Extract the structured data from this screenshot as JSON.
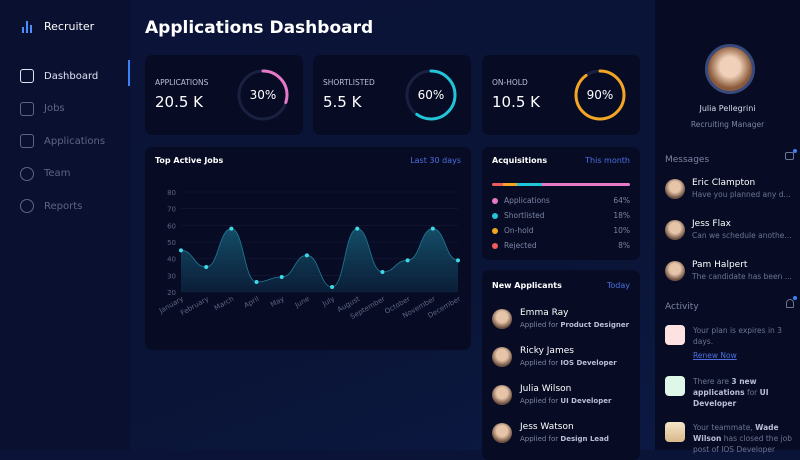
{
  "brand": "Recruiter",
  "nav": [
    {
      "label": "Dashboard",
      "icon": "dashboard-icon"
    },
    {
      "label": "Jobs",
      "icon": "briefcase-icon"
    },
    {
      "label": "Applications",
      "icon": "document-icon"
    },
    {
      "label": "Team",
      "icon": "team-icon"
    },
    {
      "label": "Reports",
      "icon": "pie-chart-icon"
    }
  ],
  "title": "Applications Dashboard",
  "stats": [
    {
      "label": "APPLICATIONS",
      "value": "20.5 K",
      "percent": 30,
      "pct_label": "30%",
      "color": "#e879c9"
    },
    {
      "label": "SHORTLISTED",
      "value": "5.5 K",
      "percent": 60,
      "pct_label": "60%",
      "color": "#22c4d8"
    },
    {
      "label": "ON-HOLD",
      "value": "10.5 K",
      "percent": 90,
      "pct_label": "90%",
      "color": "#f5a524"
    }
  ],
  "chart": {
    "title": "Top Active Jobs",
    "range": "Last 30 days"
  },
  "chart_data": {
    "type": "area",
    "categories": [
      "January",
      "February",
      "March",
      "April",
      "May",
      "June",
      "July",
      "August",
      "September",
      "October",
      "November",
      "December"
    ],
    "values": [
      45,
      35,
      58,
      26,
      29,
      42,
      23,
      58,
      32,
      39,
      58,
      39
    ],
    "yticks": [
      20,
      30,
      40,
      50,
      60,
      70,
      80
    ],
    "ylim": [
      20,
      80
    ],
    "grid": true
  },
  "acq": {
    "title": "Acquisitions",
    "range": "This month",
    "items": [
      {
        "label": "Applications",
        "pct": "64%",
        "value": 64,
        "color": "#e879c9"
      },
      {
        "label": "Shortlisted",
        "pct": "18%",
        "value": 18,
        "color": "#22c4d8"
      },
      {
        "label": "On-hold",
        "pct": "10%",
        "value": 10,
        "color": "#f5a524"
      },
      {
        "label": "Rejected",
        "pct": "8%",
        "value": 8,
        "color": "#ef5b5b"
      }
    ]
  },
  "applicants": {
    "title": "New Applicants",
    "range": "Today",
    "prefix": "Applied for",
    "items": [
      {
        "name": "Emma Ray",
        "role": "Product Designer"
      },
      {
        "name": "Ricky James",
        "role": "IOS Developer"
      },
      {
        "name": "Julia Wilson",
        "role": "UI Developer"
      },
      {
        "name": "Jess Watson",
        "role": "Design Lead"
      }
    ]
  },
  "profile": {
    "name": "Julia Pellegrini",
    "role": "Recruiting Manager"
  },
  "messages": {
    "title": "Messages",
    "items": [
      {
        "name": "Eric Clampton",
        "text": "Have you planned any d..."
      },
      {
        "name": "Jess Flax",
        "text": "Can we schedule anothe..."
      },
      {
        "name": "Pam Halpert",
        "text": "The candidate has been ..."
      }
    ]
  },
  "activity": {
    "title": "Activity",
    "a1": "Your plan is expires in 3 days.",
    "a1_link": "Renew Now",
    "a2_pre": "There are",
    "a2_b": "3 new applications",
    "a2_mid": "for",
    "a2_b2": "UI Developer",
    "a3_pre": "Your teammate,",
    "a3_b": "Wade Wilson",
    "a3_post": "has closed the job post of IOS Developer"
  }
}
